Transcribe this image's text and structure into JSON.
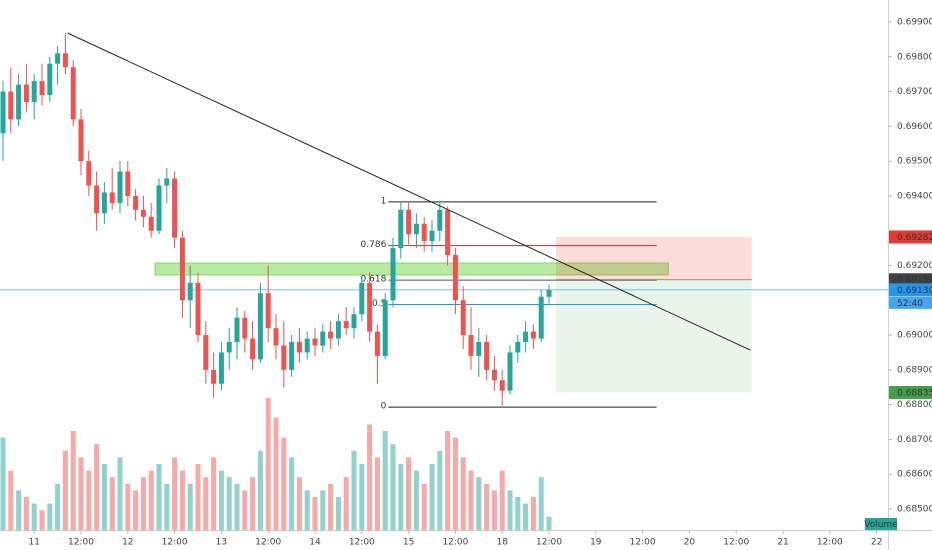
{
  "chart_data": {
    "type": "candlestick",
    "candles": {
      "open": [
        0.6958,
        0.697,
        0.6962,
        0.6972,
        0.6967,
        0.6973,
        0.6969,
        0.6978,
        0.6981,
        0.6977,
        0.6962,
        0.695,
        0.6943,
        0.6935,
        0.6941,
        0.6938,
        0.6947,
        0.694,
        0.6936,
        0.6934,
        0.693,
        0.6943,
        0.6945,
        0.6928,
        0.691,
        0.6915,
        0.69,
        0.689,
        0.6886,
        0.6895,
        0.6898,
        0.6905,
        0.6899,
        0.6893,
        0.6912,
        0.6902,
        0.6897,
        0.689,
        0.6898,
        0.6895,
        0.6899,
        0.6897,
        0.6901,
        0.6899,
        0.6904,
        0.6902,
        0.6906,
        0.6915,
        0.6901,
        0.6894,
        0.691,
        0.6925,
        0.6936,
        0.6929,
        0.6932,
        0.6927,
        0.693,
        0.6936,
        0.6923,
        0.691,
        0.69,
        0.6894,
        0.6898,
        0.689,
        0.6887,
        0.6884,
        0.6895,
        0.6898,
        0.6901,
        0.6899,
        0.6911
      ],
      "high": [
        0.6973,
        0.6977,
        0.6975,
        0.6978,
        0.6975,
        0.6978,
        0.698,
        0.6983,
        0.69868,
        0.6979,
        0.6965,
        0.6953,
        0.6947,
        0.6944,
        0.6948,
        0.695,
        0.695,
        0.6942,
        0.694,
        0.6938,
        0.6945,
        0.6948,
        0.6947,
        0.693,
        0.692,
        0.6918,
        0.6904,
        0.6895,
        0.6898,
        0.6902,
        0.6908,
        0.6907,
        0.6904,
        0.6915,
        0.692,
        0.6906,
        0.6904,
        0.69,
        0.6902,
        0.6901,
        0.6902,
        0.6903,
        0.6904,
        0.6906,
        0.6908,
        0.6908,
        0.6917,
        0.6918,
        0.6903,
        0.6912,
        0.6928,
        0.6938,
        0.6938,
        0.6935,
        0.6934,
        0.6933,
        0.69385,
        0.6937,
        0.6925,
        0.6914,
        0.6908,
        0.6902,
        0.69,
        0.6894,
        0.689,
        0.6897,
        0.69,
        0.6904,
        0.6903,
        0.6913,
        0.69145
      ],
      "low": [
        0.695,
        0.6958,
        0.696,
        0.6964,
        0.6962,
        0.6966,
        0.6967,
        0.6972,
        0.6975,
        0.696,
        0.6946,
        0.694,
        0.693,
        0.6932,
        0.6936,
        0.6935,
        0.6937,
        0.6933,
        0.6931,
        0.6928,
        0.6929,
        0.6938,
        0.6925,
        0.6905,
        0.6902,
        0.6898,
        0.6886,
        0.6882,
        0.6884,
        0.689,
        0.6893,
        0.6895,
        0.689,
        0.6892,
        0.6898,
        0.6893,
        0.6885,
        0.6888,
        0.6892,
        0.6893,
        0.6894,
        0.6895,
        0.6896,
        0.6897,
        0.69,
        0.6899,
        0.6904,
        0.6898,
        0.6886,
        0.6893,
        0.6908,
        0.6922,
        0.6926,
        0.6925,
        0.6924,
        0.6924,
        0.6927,
        0.692,
        0.6906,
        0.6896,
        0.689,
        0.6888,
        0.6887,
        0.6884,
        0.68797,
        0.6883,
        0.6892,
        0.6895,
        0.6896,
        0.6898,
        0.6909
      ],
      "close": [
        0.697,
        0.6962,
        0.6972,
        0.6967,
        0.6973,
        0.6969,
        0.6978,
        0.6981,
        0.6977,
        0.6962,
        0.695,
        0.6943,
        0.6935,
        0.6941,
        0.6938,
        0.6947,
        0.694,
        0.6936,
        0.6934,
        0.693,
        0.6943,
        0.6945,
        0.6928,
        0.691,
        0.6915,
        0.69,
        0.689,
        0.6886,
        0.6895,
        0.6898,
        0.6905,
        0.6899,
        0.6893,
        0.6912,
        0.6902,
        0.6897,
        0.689,
        0.6898,
        0.6895,
        0.6899,
        0.6897,
        0.6901,
        0.6899,
        0.6904,
        0.6902,
        0.6906,
        0.6915,
        0.6901,
        0.6894,
        0.691,
        0.6925,
        0.6936,
        0.6929,
        0.6932,
        0.6927,
        0.693,
        0.6936,
        0.6923,
        0.691,
        0.69,
        0.6894,
        0.6898,
        0.689,
        0.6887,
        0.6884,
        0.6895,
        0.6898,
        0.6901,
        0.6899,
        0.6911,
        0.6913
      ]
    },
    "volume": [
      70,
      45,
      30,
      25,
      20,
      15,
      20,
      35,
      60,
      75,
      55,
      45,
      65,
      50,
      40,
      55,
      35,
      30,
      40,
      45,
      50,
      35,
      55,
      45,
      35,
      50,
      40,
      55,
      45,
      40,
      35,
      30,
      40,
      60,
      100,
      85,
      70,
      55,
      40,
      30,
      25,
      30,
      35,
      25,
      40,
      60,
      50,
      80,
      55,
      75,
      65,
      50,
      55,
      45,
      35,
      50,
      60,
      75,
      70,
      55,
      45,
      40,
      35,
      30,
      45,
      30,
      25,
      20,
      25,
      40,
      10
    ],
    "up_color": "#26a69a",
    "down_color": "#ef5350",
    "xlim": [
      -0.385,
      113.46
    ],
    "xticks": [
      {
        "value": 4,
        "label": "11"
      },
      {
        "value": 10,
        "label": "12:00"
      },
      {
        "value": 16,
        "label": "12"
      },
      {
        "value": 22,
        "label": "12:00"
      },
      {
        "value": 28,
        "label": "13"
      },
      {
        "value": 34,
        "label": "12:00"
      },
      {
        "value": 40,
        "label": "14"
      },
      {
        "value": 46,
        "label": "12:00"
      },
      {
        "value": 52,
        "label": "15"
      },
      {
        "value": 58,
        "label": "12:00"
      },
      {
        "value": 64,
        "label": "18"
      },
      {
        "value": 70,
        "label": "12:00"
      },
      {
        "value": 76,
        "label": "19"
      },
      {
        "value": 82,
        "label": "12:00"
      },
      {
        "value": 88,
        "label": "20"
      },
      {
        "value": 94,
        "label": "12:00"
      },
      {
        "value": 100,
        "label": "21"
      },
      {
        "value": 106,
        "label": "12:00"
      },
      {
        "value": 112,
        "label": "22"
      }
    ],
    "ylim": [
      0.684396,
      0.699632
    ],
    "yticks": [
      {
        "value": 0.685,
        "label": "0.68500"
      },
      {
        "value": 0.686,
        "label": "0.68600"
      },
      {
        "value": 0.687,
        "label": "0.68700"
      },
      {
        "value": 0.688,
        "label": "0.68800"
      },
      {
        "value": 0.689,
        "label": "0.68900"
      },
      {
        "value": 0.69,
        "label": "0.69000"
      },
      {
        "value": 0.692,
        "label": "0.69200"
      },
      {
        "value": 0.694,
        "label": "0.69400"
      },
      {
        "value": 0.695,
        "label": "0.69500"
      },
      {
        "value": 0.696,
        "label": "0.69600"
      },
      {
        "value": 0.697,
        "label": "0.69700"
      },
      {
        "value": 0.698,
        "label": "0.69800"
      },
      {
        "value": 0.699,
        "label": "0.69900"
      }
    ],
    "trendline": {
      "x": [
        8.3,
        95.8
      ],
      "y": [
        0.69868,
        0.68957
      ],
      "color": "#222222"
    },
    "fib": {
      "x": [
        49.4,
        83.8
      ],
      "levels": [
        1,
        0.786,
        0.618,
        0.5,
        0
      ],
      "prices": [
        0.69383,
        0.69257,
        0.69158,
        0.69088,
        0.68793
      ],
      "colors": [
        "#222222",
        "#c62828",
        "#555555",
        "#2196f3",
        "#222222"
      ]
    },
    "zone": {
      "x": [
        19.5,
        85.3
      ],
      "y": [
        0.69173,
        0.69207
      ],
      "color": "#7ed957"
    },
    "position": {
      "x": [
        70.9,
        96
      ],
      "entry": {
        "value": 0.69159,
        "label": "0.69159"
      },
      "stop": {
        "value": 0.69282,
        "label": "0.69282"
      },
      "target": {
        "value": 0.68835,
        "label": "0.68835"
      }
    },
    "last_price": {
      "value": 0.6913,
      "label": "0.69130"
    },
    "countdown": "52:40",
    "volume_label": "Volume"
  }
}
